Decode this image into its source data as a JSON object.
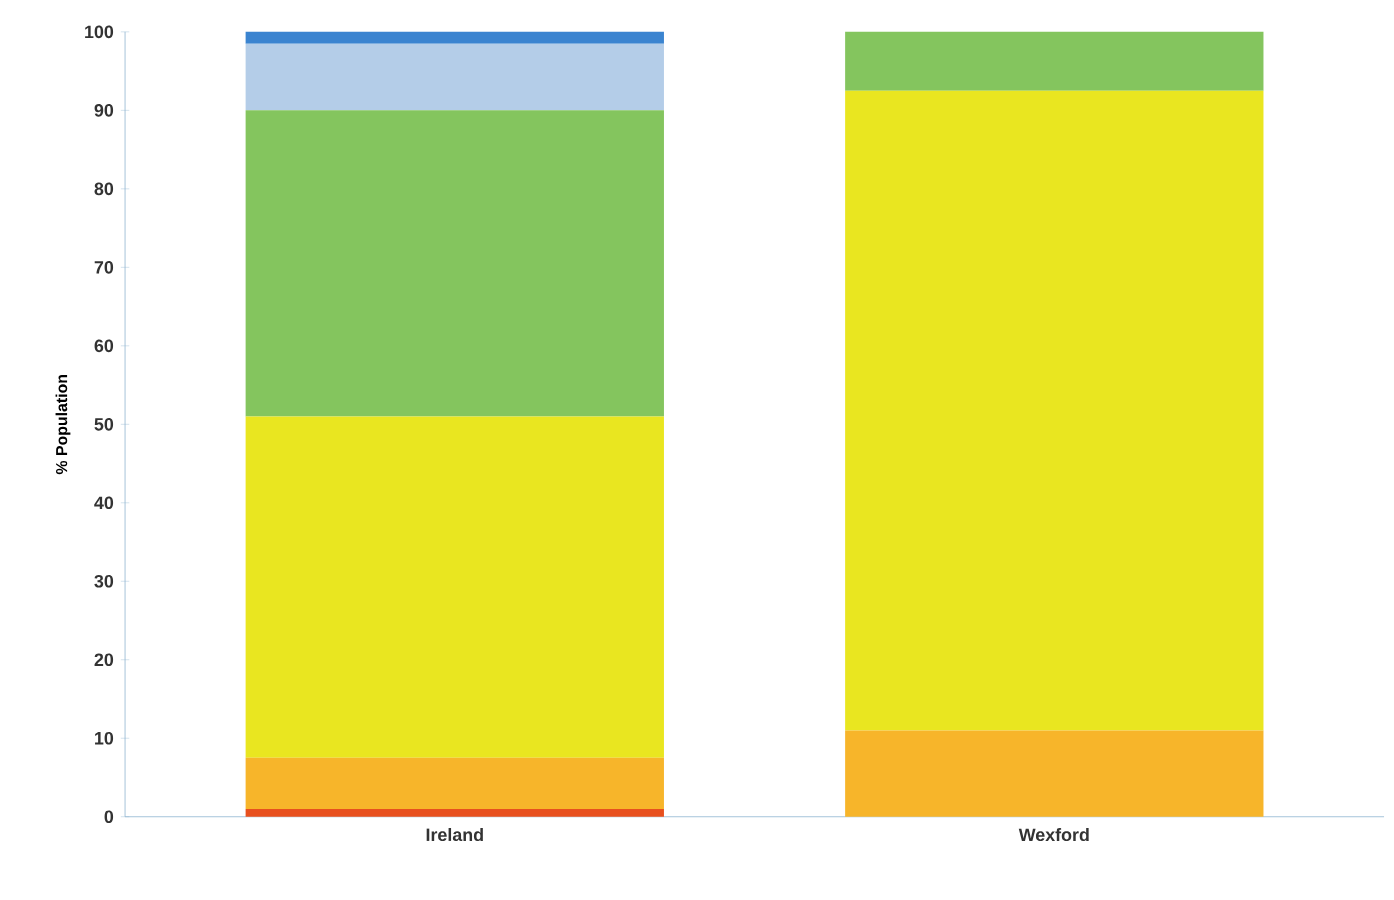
{
  "chart_data": {
    "type": "bar",
    "stacked": true,
    "ylabel": "% Population",
    "categories": [
      "Ireland",
      "Wexford"
    ],
    "ylim": [
      0,
      100
    ],
    "yticks": [
      0,
      10,
      20,
      30,
      40,
      50,
      60,
      70,
      80,
      90,
      100
    ],
    "grid": false,
    "series": [
      {
        "color": "#e8501e",
        "values": [
          1,
          0
        ]
      },
      {
        "color": "#f7b52a",
        "values": [
          6.5,
          11
        ]
      },
      {
        "color": "#e9e620",
        "values": [
          43.5,
          81.5
        ]
      },
      {
        "color": "#84c55e",
        "values": [
          39,
          7.5
        ]
      },
      {
        "color": "#b4cde8",
        "values": [
          8.5,
          0
        ]
      },
      {
        "color": "#3b84d0",
        "values": [
          1.5,
          0
        ]
      }
    ]
  }
}
